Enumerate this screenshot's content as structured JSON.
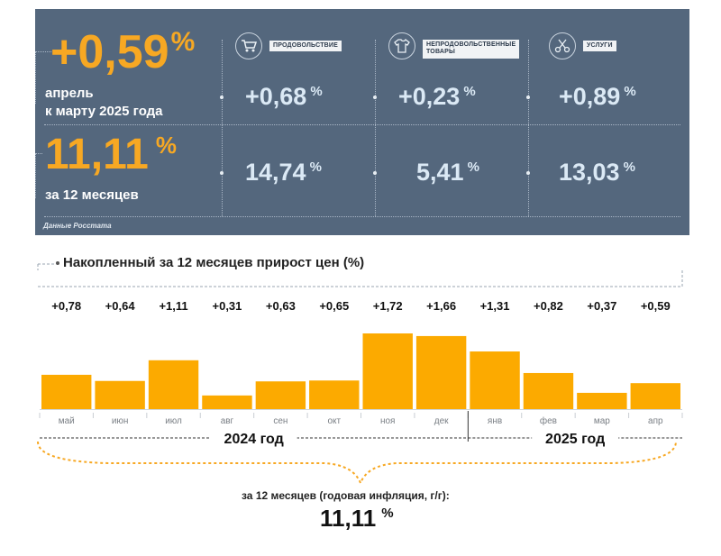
{
  "summary": {
    "monthly_value": "+0,59",
    "monthly_label_1": "апрель",
    "monthly_label_2": "к марту 2025 года",
    "annual_value": "11,11",
    "annual_label": "за 12 месяцев",
    "percent_sign": "%",
    "source": "Данные Росстата"
  },
  "categories": [
    {
      "label": "ПРОДОВОЛЬСТВИЕ",
      "label_2": "",
      "icon": "cart-icon",
      "monthly": "+0,68",
      "annual": "14,74"
    },
    {
      "label": "НЕПРОДОВОЛЬСТВЕННЫЕ",
      "label_2": "ТОВАРЫ",
      "icon": "clothes-icon",
      "monthly": "+0,23",
      "annual": "5,41"
    },
    {
      "label": "УСЛУГИ",
      "label_2": "",
      "icon": "scissors-icon",
      "monthly": "+0,89",
      "annual": "13,03"
    }
  ],
  "chart_data": {
    "type": "bar",
    "title": "Накопленный за 12 месяцев прирост цен (%)",
    "categories": [
      "май",
      "июн",
      "июл",
      "авг",
      "сен",
      "окт",
      "ноя",
      "дек",
      "янв",
      "фев",
      "мар",
      "апр"
    ],
    "values": [
      0.78,
      0.64,
      1.11,
      0.31,
      0.63,
      0.65,
      1.72,
      1.66,
      1.31,
      0.82,
      0.37,
      0.59
    ],
    "value_labels": [
      "+0,78",
      "+0,64",
      "+1,11",
      "+0,31",
      "+0,63",
      "+0,65",
      "+1,72",
      "+1,66",
      "+1,31",
      "+0,82",
      "+0,37",
      "+0,59"
    ],
    "year_groups": [
      {
        "label": "2024 год",
        "count": 8
      },
      {
        "label": "2025 год",
        "count": 4
      }
    ],
    "ylim": [
      0,
      2.0
    ],
    "bar_color": "#fcaa00",
    "total_label": "за 12 месяцев (годовая инфляция, г/г):",
    "total_value": "11,11"
  },
  "colors": {
    "panel": "#54677d",
    "accent": "#f7a823",
    "value_text": "#dbe9f5"
  }
}
